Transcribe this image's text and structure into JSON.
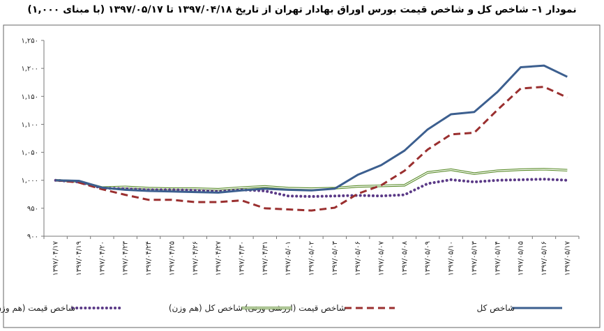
{
  "title": "نمودار ۱– شاخص کل و شاخص قیمت بورس اوراق بهادار تهران از تاریخ ۱۳۹۷/۰۴/۱۸ تا ۱۳۹۷/۰۵/۱۷ (با مبنای ۱,۰۰۰)",
  "chart_data": {
    "type": "line",
    "title": "نمودار ۱– شاخص کل و شاخص قیمت بورس اوراق بهادار تهران از تاریخ ۱۳۹۷/۰۴/۱۸ تا ۱۳۹۷/۰۵/۱۷ (با مبنای ۱,۰۰۰)",
    "xlabel": "",
    "ylabel": "",
    "ylim": [
      900,
      1250
    ],
    "yticks": [
      900,
      950,
      1000,
      1050,
      1100,
      1150,
      1200,
      1250
    ],
    "ytick_labels": [
      "۹۰۰",
      "۹۵۰",
      "۱,۰۰۰",
      "۱,۰۵۰",
      "۱,۱۰۰",
      "۱,۱۵۰",
      "۱,۲۰۰",
      "۱,۲۵۰"
    ],
    "grid": false,
    "legend_position": "bottom",
    "categories": [
      "۱۳۹۷/۰۴/۱۷",
      "۱۳۹۷/۰۴/۱۹",
      "۱۳۹۷/۰۴/۲۰",
      "۱۳۹۷/۰۴/۲۳",
      "۱۳۹۷/۰۴/۲۴",
      "۱۳۹۷/۰۴/۲۵",
      "۱۳۹۷/۰۴/۲۶",
      "۱۳۹۷/۰۴/۲۷",
      "۱۳۹۷/۰۴/۳۰",
      "۱۳۹۷/۰۴/۳۱",
      "۱۳۹۷/۰۵/۰۱",
      "۱۳۹۷/۰۵/۰۲",
      "۱۳۹۷/۰۵/۰۳",
      "۱۳۹۷/۰۵/۰۶",
      "۱۳۹۷/۰۵/۰۷",
      "۱۳۹۷/۰۵/۰۸",
      "۱۳۹۷/۰۵/۰۹",
      "۱۳۹۷/۰۵/۱۰",
      "۱۳۹۷/۰۵/۱۳",
      "۱۳۹۷/۰۵/۱۴",
      "۱۳۹۷/۰۵/۱۵",
      "۱۳۹۷/۰۵/۱۶",
      "۱۳۹۷/۰۵/۱۷"
    ],
    "series": [
      {
        "name": "شاخص کل",
        "color": "#3c5f8f",
        "style": "solid",
        "values": [
          1000,
          999,
          987,
          983,
          981,
          980,
          979,
          978,
          982,
          985,
          983,
          982,
          985,
          1010,
          1027,
          1053,
          1091,
          1118,
          1122,
          1158,
          1202,
          1205,
          1185
        ]
      },
      {
        "name": "شاخص قیمت (ارزشی-وزنی)",
        "color": "#9a2f2f",
        "style": "dashed",
        "values": [
          1000,
          996,
          984,
          974,
          965,
          965,
          961,
          961,
          964,
          950,
          948,
          946,
          951,
          976,
          991,
          1017,
          1055,
          1082,
          1085,
          1126,
          1164,
          1167,
          1148
        ]
      },
      {
        "name": "شاخص کل (هم وزن)",
        "color": "#5a8c2a",
        "style": "double",
        "values": [
          1000,
          998,
          987,
          988,
          986,
          985,
          985,
          984,
          987,
          989,
          986,
          985,
          986,
          989,
          990,
          991,
          1014,
          1019,
          1012,
          1017,
          1019,
          1020,
          1018
        ]
      },
      {
        "name": "شاخص قیمت (هم وزن)",
        "color": "#5b3a87",
        "style": "dotted",
        "values": [
          1000,
          997,
          986,
          985,
          983,
          983,
          982,
          980,
          983,
          981,
          972,
          971,
          972,
          973,
          972,
          974,
          994,
          1001,
          997,
          1000,
          1001,
          1002,
          1000
        ]
      }
    ]
  }
}
